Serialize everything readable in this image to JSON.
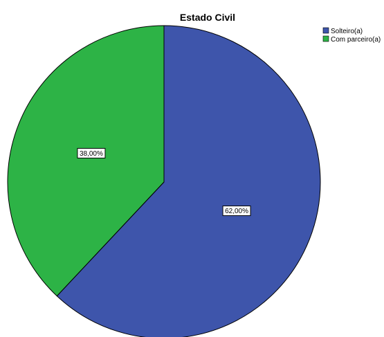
{
  "chart_data": {
    "type": "pie",
    "title": "Estado Civil",
    "legend_position": "top-right",
    "start_angle_deg": 0,
    "direction": "clockwise",
    "slices": [
      {
        "name": "Solteiro(a)",
        "value": 62.0,
        "label": "62,00%",
        "color": "#3e55ab"
      },
      {
        "name": "Com parceiro(a)",
        "value": 38.0,
        "label": "38,00%",
        "color": "#2db346"
      }
    ],
    "outline_color": "#000000",
    "label_box_border": "#000000"
  }
}
